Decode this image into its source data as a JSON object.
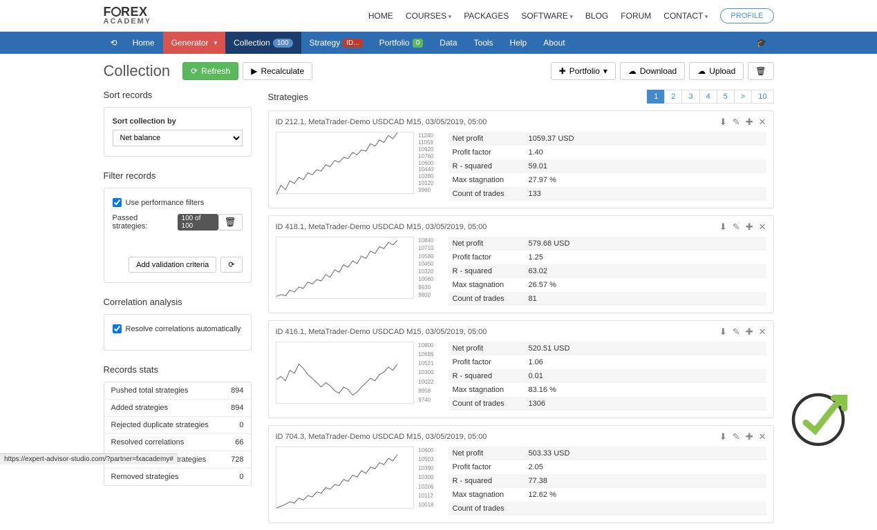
{
  "topNav": {
    "logo_main": "FOREX",
    "logo_sub": "ACADEMY",
    "items": [
      "HOME",
      "COURSES",
      "PACKAGES",
      "SOFTWARE",
      "BLOG",
      "FORUM",
      "CONTACT"
    ],
    "dropdowns": [
      false,
      true,
      false,
      true,
      false,
      false,
      true
    ],
    "profile_label": "PROFILE"
  },
  "secNav": {
    "home": "Home",
    "generator": "Generator",
    "collection": "Collection",
    "collection_count": "100",
    "strategy": "Strategy",
    "strategy_id": "ID...",
    "portfolio": "Portfolio",
    "portfolio_count": "0",
    "data": "Data",
    "tools": "Tools",
    "help": "Help",
    "about": "About"
  },
  "toolbar": {
    "page_title": "Collection",
    "refresh": "Refresh",
    "recalculate": "Recalculate",
    "portfolio": "Portfolio",
    "download": "Download",
    "upload": "Upload"
  },
  "sort": {
    "title": "Sort records",
    "label": "Sort collection by",
    "selected": "Net balance"
  },
  "filter": {
    "title": "Filter records",
    "use_perf_label": "Use performance filters",
    "passed_label": "Passed strategies:",
    "passed_badge": "100 of 100",
    "add_criteria": "Add validation criteria"
  },
  "correlation": {
    "title": "Correlation analysis",
    "resolve_label": "Resolve correlations automatically"
  },
  "stats": {
    "title": "Records stats",
    "rows": [
      {
        "label": "Pushed total strategies",
        "value": "894"
      },
      {
        "label": "Added strategies",
        "value": "894"
      },
      {
        "label": "Rejected duplicate strategies",
        "value": "0"
      },
      {
        "label": "Resolved correlations",
        "value": "66"
      },
      {
        "label": "Pruned excessive strategies",
        "value": "728"
      },
      {
        "label": "Removed strategies",
        "value": "0"
      }
    ]
  },
  "strategies": {
    "title": "Strategies",
    "pages": [
      "1",
      "2",
      "3",
      "4",
      "5",
      ">",
      "10"
    ],
    "active_page": "1",
    "metric_labels": [
      "Net profit",
      "Profit factor",
      "R - squared",
      "Max stagnation",
      "Count of trades"
    ],
    "cards": [
      {
        "title": "ID 212.1, MetaTrader-Demo USDCAD M15, 03/05/2019, 05:00",
        "ylabels": [
          "11240",
          "11059",
          "10920",
          "10760",
          "10600",
          "10440",
          "10280",
          "10120",
          "9960"
        ],
        "chart_points": [
          0,
          15,
          8,
          22,
          18,
          28,
          24,
          35,
          32,
          40,
          38,
          48,
          45,
          55,
          52,
          60,
          58,
          68,
          64,
          72,
          70,
          82,
          78,
          88,
          84,
          95,
          90,
          100
        ],
        "chart_ymin": 9960,
        "chart_ymax": 11240,
        "metrics": [
          "1059.37 USD",
          "1.40",
          "59.01",
          "27.97 %",
          "133"
        ]
      },
      {
        "title": "ID 418.1, MetaTrader-Demo USDCAD M15, 03/05/2019, 05:00",
        "ylabels": [
          "10840",
          "10710",
          "10580",
          "10450",
          "10320",
          "10060",
          "9930",
          "9800"
        ],
        "chart_points": [
          5,
          8,
          6,
          15,
          12,
          20,
          18,
          28,
          25,
          32,
          30,
          40,
          36,
          48,
          44,
          56,
          52,
          62,
          58,
          70,
          66,
          78,
          74,
          85,
          82,
          92,
          88,
          95
        ],
        "metrics": [
          "579.68 USD",
          "1.25",
          "63.02",
          "26.57 %",
          "81"
        ]
      },
      {
        "title": "ID 416.1, MetaTrader-Demo USDCAD M15, 03/05/2019, 05:00",
        "ylabels": [
          "10800",
          "10686",
          "10521",
          "10300",
          "10022",
          "9958",
          "9740"
        ],
        "chart_points": [
          40,
          45,
          38,
          55,
          50,
          65,
          58,
          48,
          42,
          35,
          28,
          35,
          30,
          22,
          18,
          28,
          24,
          15,
          20,
          28,
          35,
          42,
          38,
          48,
          52,
          60,
          55,
          65
        ],
        "metrics": [
          "520.51 USD",
          "1.06",
          "0.01",
          "83.16 %",
          "1306"
        ]
      },
      {
        "title": "ID 704.3, MetaTrader-Demo USDCAD M15, 03/05/2019, 05:00",
        "ylabels": [
          "10600",
          "10503",
          "10390",
          "10300",
          "10206",
          "10112",
          "10018"
        ],
        "chart_points": [
          2,
          5,
          8,
          12,
          10,
          18,
          15,
          22,
          20,
          28,
          26,
          35,
          32,
          40,
          38,
          48,
          45,
          55,
          52,
          62,
          58,
          68,
          65,
          75,
          72,
          82,
          78,
          88
        ],
        "metrics": [
          "503.33 USD",
          "2.05",
          "77.38",
          "12.62 %",
          ""
        ]
      }
    ]
  },
  "colors": {
    "nav_blue": "#2f6db3",
    "nav_dark": "#1a3d6d",
    "red": "#d9534f",
    "green": "#5cb85c",
    "link": "#428bca",
    "chart_line": "#666666"
  },
  "status_url": "https://expert-advisor-studio.com/?partner=fxacademy#"
}
